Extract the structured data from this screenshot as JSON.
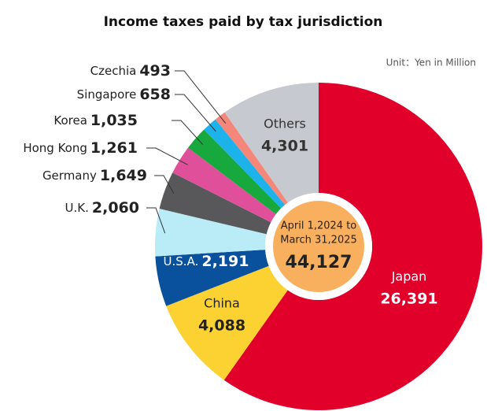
{
  "chart_data": {
    "type": "donut",
    "title": "Income taxes paid by tax jurisdiction",
    "unit": "Unit：Yen in Million",
    "center_lines": [
      "April 1,2024 to",
      "March 31,2025"
    ],
    "total": 44127,
    "total_label": "44,127",
    "categories": [
      "Japan",
      "China",
      "U.S.A.",
      "U.K.",
      "Germany",
      "Hong Kong",
      "Korea",
      "Singapore",
      "Czechia",
      "Others"
    ],
    "values": [
      26391,
      4088,
      2191,
      2060,
      1649,
      1261,
      1035,
      658,
      493,
      4301
    ],
    "value_labels": [
      "26,391",
      "4,088",
      "2,191",
      "2,060",
      "1,649",
      "1,261",
      "1,035",
      "658",
      "493",
      "4,301"
    ],
    "colors": [
      "#e0002a",
      "#fcd232",
      "#0a519d",
      "#b9ecf6",
      "#58585a",
      "#e0509a",
      "#17a83e",
      "#1db3ea",
      "#f4877a",
      "#c6c9cf"
    ]
  }
}
